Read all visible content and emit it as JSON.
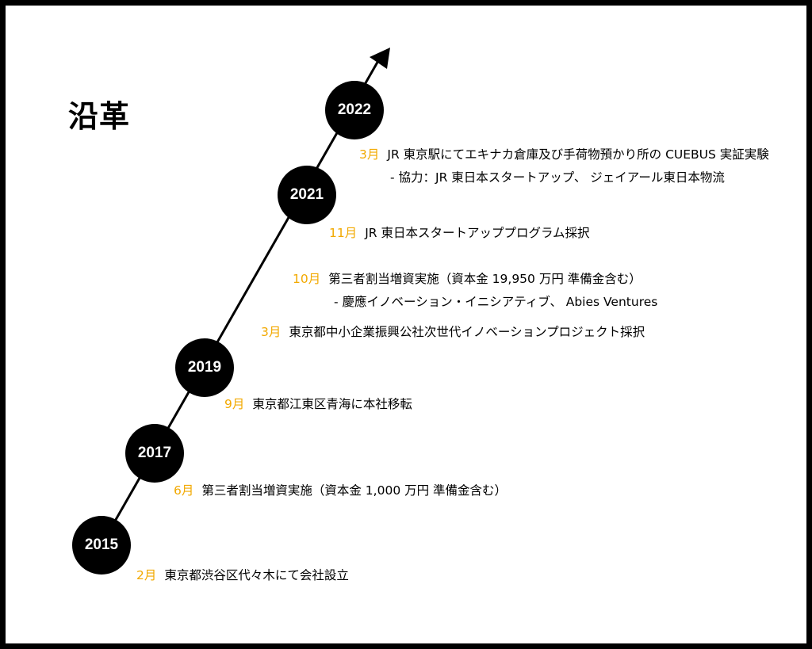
{
  "title": "沿革",
  "colors": {
    "month": "#f2a900",
    "node": "#000000",
    "frame": "#000000"
  },
  "years": [
    "2015",
    "2017",
    "2019",
    "2021",
    "2022"
  ],
  "events": [
    {
      "month": "2月",
      "text": "東京都渋谷区代々木にて会社設立"
    },
    {
      "month": "6月",
      "text": "第三者割当増資実施（資本金 1,000 万円 準備金含む）"
    },
    {
      "month": "9月",
      "text": "東京都江東区青海に本社移転"
    },
    {
      "month": "3月",
      "text": "東京都中小企業振興公社次世代イノベーションプロジェクト採択"
    },
    {
      "month": "10月",
      "text": "第三者割当増資実施（資本金 19,950 万円 準備金含む）",
      "sub": "- 慶應イノベーション・イニシアティブ、 Abies Ventures"
    },
    {
      "month": "11月",
      "text": "JR 東日本スタートアッププログラム採択"
    },
    {
      "month": "3月",
      "text": "JR 東京駅にてエキナカ倉庫及び手荷物預かり所の CUEBUS 実証実験",
      "sub": "- 協力：JR 東日本スタートアップ、 ジェイアール東日本物流"
    }
  ]
}
